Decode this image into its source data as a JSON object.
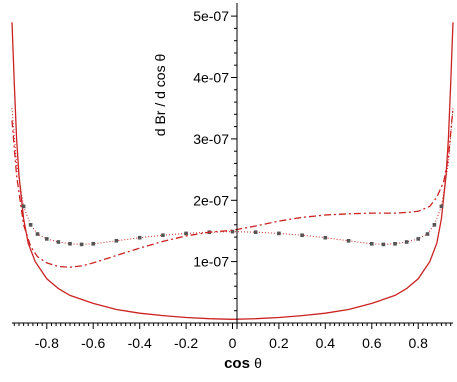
{
  "chart_data": {
    "type": "line",
    "title": "",
    "xlabel": "cos θ",
    "ylabel": "d Br / d cos θ",
    "xlim": [
      -0.95,
      0.95
    ],
    "ylim": [
      0,
      5.1e-07
    ],
    "grid": false,
    "x_ticks": [
      -0.8,
      -0.6,
      -0.4,
      -0.2,
      0,
      0.2,
      0.4,
      0.6,
      0.8
    ],
    "x_tick_labels": [
      "-0.8",
      "-0.6",
      "-0.4",
      "-0.2",
      "0",
      "0.2",
      "0.4",
      "0.6",
      "0.8"
    ],
    "y_ticks": [
      1e-07,
      2e-07,
      3e-07,
      4e-07,
      5e-07
    ],
    "y_tick_labels": [
      "1e-07",
      "2e-07",
      "3e-07",
      "4e-07",
      "5e-07"
    ],
    "colors": {
      "series": "#cc2222",
      "markers": "#555555",
      "axis": "#000000"
    },
    "series": [
      {
        "style": "solid",
        "x": [
          -0.95,
          -0.94,
          -0.93,
          -0.92,
          -0.9,
          -0.88,
          -0.85,
          -0.8,
          -0.75,
          -0.7,
          -0.6,
          -0.5,
          -0.4,
          -0.3,
          -0.2,
          -0.1,
          0,
          0.1,
          0.2,
          0.3,
          0.4,
          0.5,
          0.6,
          0.7,
          0.75,
          0.8,
          0.85,
          0.88,
          0.9,
          0.92,
          0.93,
          0.94,
          0.95
        ],
        "y": [
          4.9e-07,
          3.9e-07,
          3e-07,
          2.4e-07,
          1.7e-07,
          1.3e-07,
          1e-07,
          7.2e-08,
          5.6e-08,
          4.5e-08,
          3.2e-08,
          2.2e-08,
          1.6e-08,
          1.2e-08,
          9e-09,
          7e-09,
          6e-09,
          7e-09,
          9e-09,
          1.2e-08,
          1.6e-08,
          2.2e-08,
          3.2e-08,
          4.5e-08,
          5.6e-08,
          7.2e-08,
          1e-07,
          1.3e-07,
          1.7e-07,
          2.4e-07,
          3e-07,
          3.9e-07,
          4.9e-07
        ]
      },
      {
        "style": "dotted-markers",
        "x": [
          -0.95,
          -0.93,
          -0.9,
          -0.87,
          -0.84,
          -0.8,
          -0.75,
          -0.7,
          -0.65,
          -0.6,
          -0.5,
          -0.4,
          -0.3,
          -0.2,
          -0.1,
          0,
          0.1,
          0.2,
          0.3,
          0.4,
          0.5,
          0.6,
          0.65,
          0.7,
          0.75,
          0.8,
          0.84,
          0.87,
          0.9,
          0.93,
          0.95
        ],
        "y": [
          3.5e-07,
          2.6e-07,
          1.9e-07,
          1.6e-07,
          1.45e-07,
          1.37e-07,
          1.32e-07,
          1.29e-07,
          1.28e-07,
          1.29e-07,
          1.34e-07,
          1.39e-07,
          1.43e-07,
          1.46e-07,
          1.48e-07,
          1.49e-07,
          1.48e-07,
          1.46e-07,
          1.43e-07,
          1.39e-07,
          1.34e-07,
          1.29e-07,
          1.28e-07,
          1.29e-07,
          1.32e-07,
          1.37e-07,
          1.45e-07,
          1.6e-07,
          1.9e-07,
          2.6e-07,
          3.5e-07
        ]
      },
      {
        "style": "dashed",
        "x": [
          -0.95,
          -0.93,
          -0.9,
          -0.87,
          -0.84,
          -0.8,
          -0.75,
          -0.7,
          -0.65,
          -0.6,
          -0.5,
          -0.4,
          -0.3,
          -0.2,
          -0.1,
          0,
          0.1,
          0.2,
          0.3,
          0.4,
          0.5,
          0.6,
          0.7,
          0.75,
          0.8,
          0.85,
          0.88,
          0.91,
          0.93,
          0.95
        ],
        "y": [
          3.3e-07,
          2.4e-07,
          1.6e-07,
          1.25e-07,
          1.08e-07,
          9.8e-08,
          9.2e-08,
          9.1e-08,
          9.3e-08,
          9.8e-08,
          1.1e-07,
          1.22e-07,
          1.33e-07,
          1.42e-07,
          1.48e-07,
          1.51e-07,
          1.58e-07,
          1.66e-07,
          1.72e-07,
          1.76e-07,
          1.78e-07,
          1.79e-07,
          1.79e-07,
          1.8e-07,
          1.82e-07,
          1.9e-07,
          2.05e-07,
          2.3e-07,
          2.7e-07,
          3.5e-07
        ]
      }
    ]
  }
}
